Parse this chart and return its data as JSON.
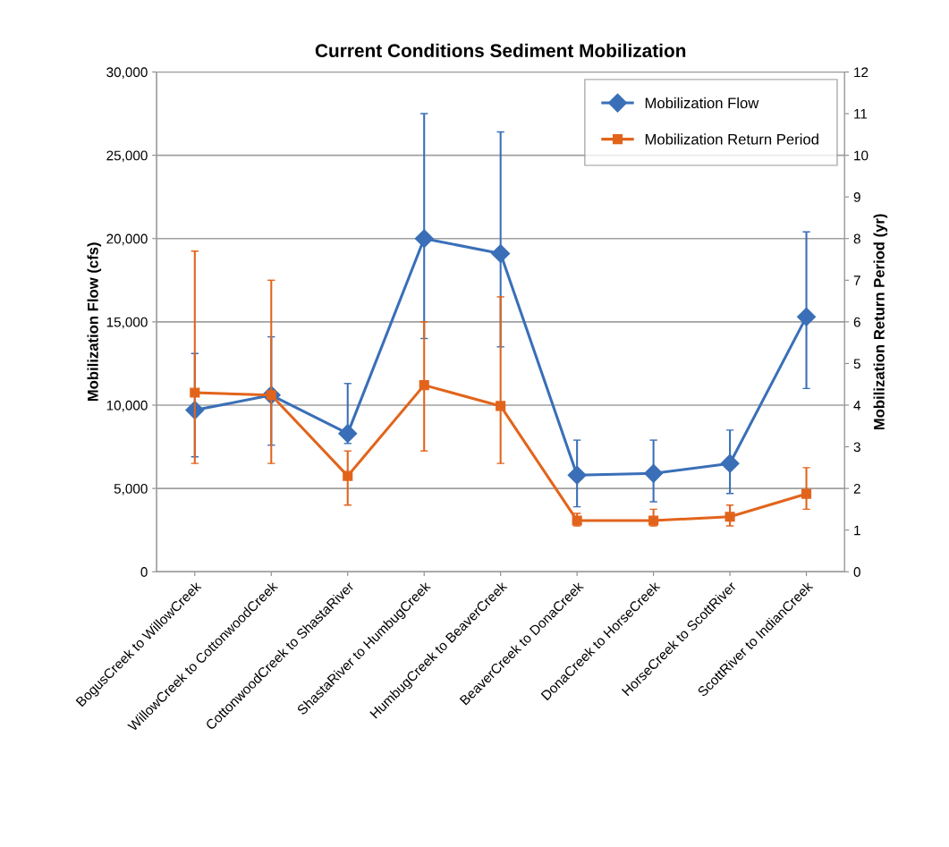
{
  "chart_data": {
    "type": "line",
    "title": "Current Conditions Sediment Mobilization",
    "ylabel": "Mobilization Flow (cfs)",
    "y2label": "Mobilization Return Period (yr)",
    "categories": [
      "BogusCreek to WillowCreek",
      "WillowCreek to CottonwoodCreek",
      "CottonwoodCreek to ShastaRiver",
      "ShastaRiver to HumbugCreek",
      "HumbugCreek to BeaverCreek",
      "BeaverCreek to DonaCreek",
      "DonaCreek to HorseCreek",
      "HorseCreek to ScottRiver",
      "ScottRiver to IndianCreek"
    ],
    "series": [
      {
        "name": "Mobilization Flow",
        "color": "#3a6fb8",
        "marker": "diamond",
        "values": [
          9700,
          10600,
          8300,
          20000,
          19100,
          5800,
          5900,
          6500,
          15300
        ],
        "errors": [
          [
            6900,
            13100
          ],
          [
            7600,
            14100
          ],
          [
            7700,
            11300
          ],
          [
            14000,
            27500
          ],
          [
            13500,
            26400
          ],
          [
            3900,
            7900
          ],
          [
            4200,
            7900
          ],
          [
            4700,
            8500
          ],
          [
            11000,
            20400
          ]
        ]
      },
      {
        "name": "Mobilization Return Period",
        "color": "#e2641c",
        "marker": "square",
        "axis": "y2",
        "values": [
          4.3,
          4.24,
          2.3,
          4.48,
          3.98,
          1.23,
          1.23,
          1.32,
          1.87
        ],
        "errors": [
          [
            2.6,
            7.7
          ],
          [
            2.6,
            7.0
          ],
          [
            1.6,
            2.9
          ],
          [
            2.9,
            6.0
          ],
          [
            2.6,
            6.6
          ],
          [
            1.1,
            1.4
          ],
          [
            1.1,
            1.5
          ],
          [
            1.1,
            1.6
          ],
          [
            1.5,
            2.5
          ]
        ]
      }
    ],
    "ylim": [
      0,
      30000
    ],
    "yticks": [
      {
        "value": 0,
        "label": "0"
      },
      {
        "value": 5000,
        "label": "5,000"
      },
      {
        "value": 10000,
        "label": "10,000"
      },
      {
        "value": 15000,
        "label": "15,000"
      },
      {
        "value": 20000,
        "label": "20,000"
      },
      {
        "value": 25000,
        "label": "25,000"
      },
      {
        "value": 30000,
        "label": "30,000"
      }
    ],
    "y2lim": [
      0,
      12
    ],
    "y2ticks": [
      0,
      1,
      2,
      3,
      4,
      5,
      6,
      7,
      8,
      9,
      10,
      11,
      12
    ],
    "grid": "y",
    "legend": "top right"
  }
}
